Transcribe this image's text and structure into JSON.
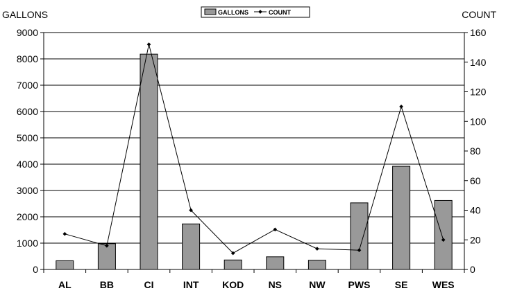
{
  "chart_data": {
    "type": "bar",
    "categories": [
      "AL",
      "BB",
      "CI",
      "INT",
      "KOD",
      "NS",
      "NW",
      "PWS",
      "SE",
      "WES"
    ],
    "series": [
      {
        "name": "GALLONS",
        "type": "bar",
        "axis": "left",
        "values": [
          330,
          980,
          8180,
          1730,
          360,
          480,
          350,
          2530,
          3920,
          2620
        ],
        "color": "#999999"
      },
      {
        "name": "COUNT",
        "type": "line",
        "axis": "right",
        "values": [
          24,
          16,
          152,
          40,
          11,
          27,
          14,
          13,
          110,
          20
        ],
        "color": "#000000"
      }
    ],
    "ylabel": "GALLONS",
    "y2label": "COUNT",
    "ylim": [
      0,
      9000
    ],
    "yticks": [
      0,
      1000,
      2000,
      3000,
      4000,
      5000,
      6000,
      7000,
      8000,
      9000
    ],
    "y2lim": [
      0,
      160
    ],
    "y2ticks": [
      0,
      20,
      40,
      60,
      80,
      100,
      120,
      140,
      160
    ],
    "grid": true,
    "legend": "top-center"
  }
}
